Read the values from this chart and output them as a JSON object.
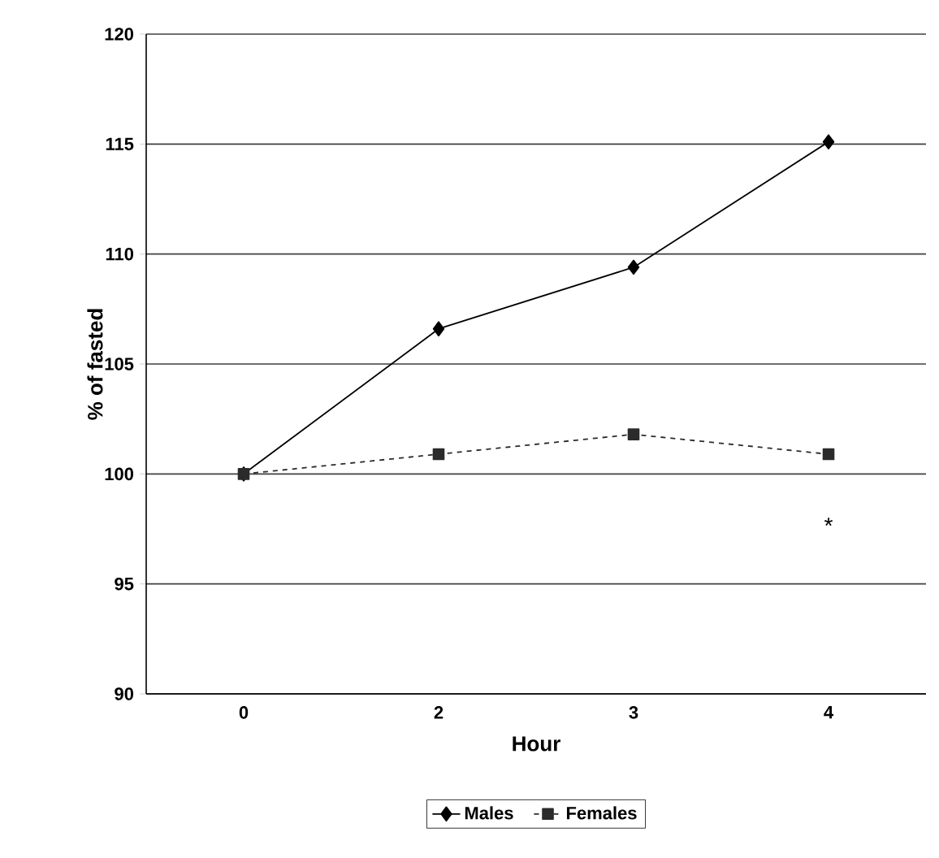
{
  "chart_data": {
    "type": "line",
    "xlabel": "Hour",
    "ylabel": "% of fasted",
    "categories": [
      "0",
      "2",
      "3",
      "4"
    ],
    "series": [
      {
        "name": "Males",
        "color": "#000000",
        "marker": "diamond",
        "line_style": "solid",
        "values": [
          100,
          106.6,
          109.4,
          115.1
        ]
      },
      {
        "name": "Females",
        "color": "#2b2b2b",
        "marker": "square",
        "line_style": "dashed",
        "values": [
          100,
          100.9,
          101.8,
          100.9
        ]
      }
    ],
    "ylim": [
      90,
      120
    ],
    "yticks": [
      90,
      95,
      100,
      105,
      110,
      115,
      120
    ],
    "grid": "y",
    "legend": "bottom",
    "annotations": [
      "*"
    ]
  }
}
